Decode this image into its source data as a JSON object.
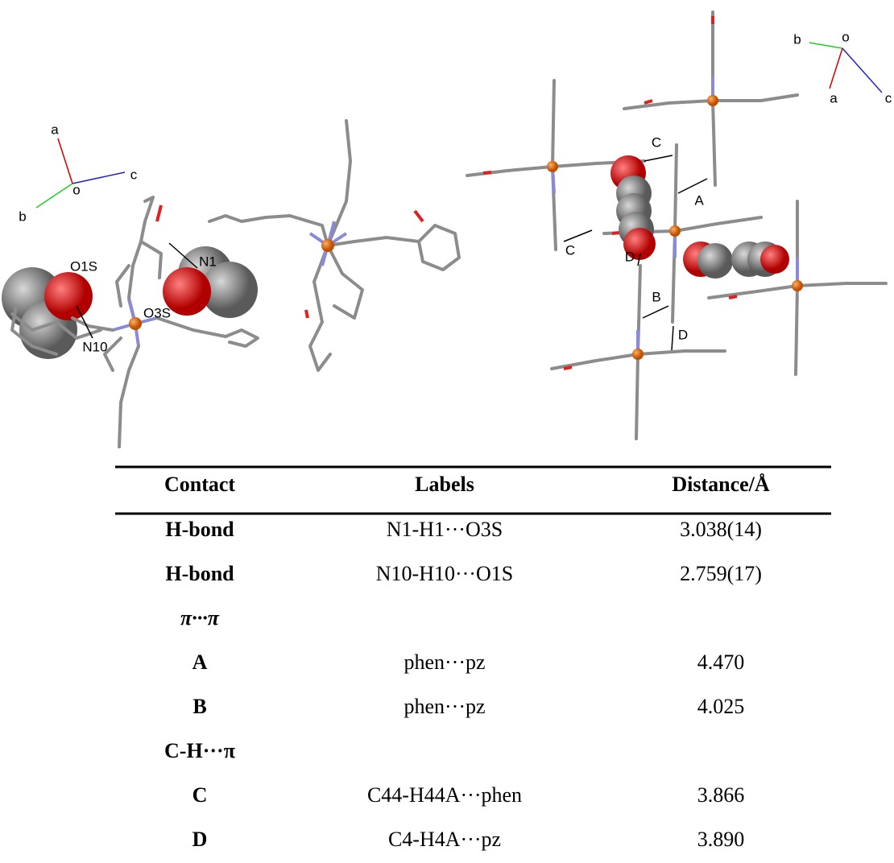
{
  "figure": {
    "left_panel": {
      "axes": [
        "a",
        "b",
        "c",
        "o"
      ],
      "atoms": [
        "O1S",
        "N1",
        "O3S",
        "N10"
      ]
    },
    "right_panel": {
      "axes": [
        "b",
        "o",
        "a",
        "c"
      ],
      "contacts": [
        "C",
        "A",
        "C",
        "D",
        "B",
        "D"
      ]
    }
  },
  "table": {
    "header": [
      "Contact",
      "Labels",
      "Distance/Å"
    ],
    "rows": [
      [
        "H-bond",
        "N1-H1···O3S",
        "3.038(14)"
      ],
      [
        "H-bond",
        "N10-H10···O1S",
        "2.759(17)"
      ],
      [
        "π···π"
      ],
      [
        "A",
        "phen···pz",
        "4.470"
      ],
      [
        "B",
        "phen···pz",
        "4.025"
      ],
      [
        "C-H···π"
      ],
      [
        "C",
        "C44-H44A···phen",
        "3.866"
      ],
      [
        "D",
        "C4-H4A···pz",
        "3.890"
      ]
    ]
  }
}
